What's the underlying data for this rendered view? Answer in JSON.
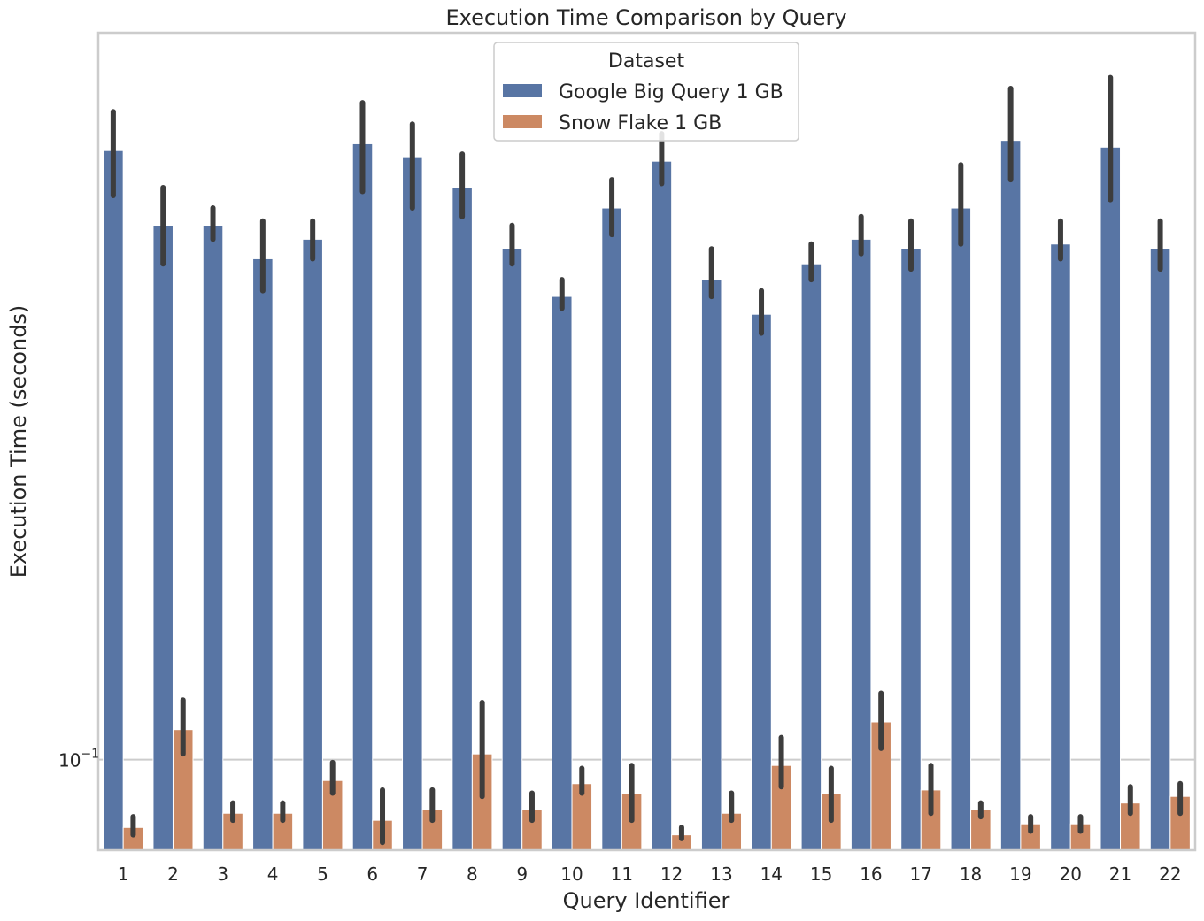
{
  "chart_data": {
    "type": "bar",
    "title": "Execution Time Comparison by Query",
    "xlabel": "Query Identifier",
    "ylabel": "Execution Time (seconds)",
    "yscale": "log",
    "ylim": [
      0.073,
      1.25
    ],
    "yticks": [
      {
        "value": 0.1,
        "base": "10",
        "exp": "−1"
      }
    ],
    "grid": "y",
    "legend": {
      "title": "Dataset",
      "placement": "top-center"
    },
    "categories": [
      "1",
      "2",
      "3",
      "4",
      "5",
      "6",
      "7",
      "8",
      "9",
      "10",
      "11",
      "12",
      "13",
      "14",
      "15",
      "16",
      "17",
      "18",
      "19",
      "20",
      "21",
      "22"
    ],
    "series": [
      {
        "name": "Google Big Query 1 GB",
        "color": "#5875a4",
        "values": [
          0.83,
          0.64,
          0.64,
          0.57,
          0.61,
          0.85,
          0.81,
          0.73,
          0.59,
          0.5,
          0.68,
          0.8,
          0.53,
          0.47,
          0.56,
          0.61,
          0.59,
          0.68,
          0.86,
          0.6,
          0.84,
          0.59
        ],
        "err_low": [
          0.71,
          0.56,
          0.61,
          0.51,
          0.57,
          0.72,
          0.68,
          0.66,
          0.56,
          0.48,
          0.62,
          0.74,
          0.5,
          0.44,
          0.53,
          0.58,
          0.55,
          0.6,
          0.75,
          0.57,
          0.7,
          0.55
        ],
        "err_high": [
          0.95,
          0.73,
          0.68,
          0.65,
          0.65,
          0.98,
          0.91,
          0.82,
          0.64,
          0.53,
          0.75,
          0.88,
          0.59,
          0.51,
          0.6,
          0.66,
          0.65,
          0.79,
          1.03,
          0.65,
          1.07,
          0.65
        ]
      },
      {
        "name": "Snow Flake 1 GB",
        "color": "#cc8963",
        "values": [
          0.079,
          0.111,
          0.083,
          0.083,
          0.093,
          0.081,
          0.084,
          0.102,
          0.084,
          0.092,
          0.089,
          0.077,
          0.083,
          0.098,
          0.089,
          0.114,
          0.09,
          0.084,
          0.08,
          0.08,
          0.086,
          0.088
        ],
        "err_low": [
          0.077,
          0.102,
          0.081,
          0.081,
          0.089,
          0.075,
          0.081,
          0.088,
          0.081,
          0.089,
          0.081,
          0.076,
          0.081,
          0.091,
          0.081,
          0.104,
          0.083,
          0.082,
          0.078,
          0.078,
          0.083,
          0.083
        ],
        "err_high": [
          0.082,
          0.123,
          0.086,
          0.086,
          0.099,
          0.09,
          0.09,
          0.122,
          0.089,
          0.097,
          0.098,
          0.079,
          0.089,
          0.108,
          0.097,
          0.126,
          0.098,
          0.086,
          0.082,
          0.082,
          0.091,
          0.092
        ]
      }
    ]
  }
}
